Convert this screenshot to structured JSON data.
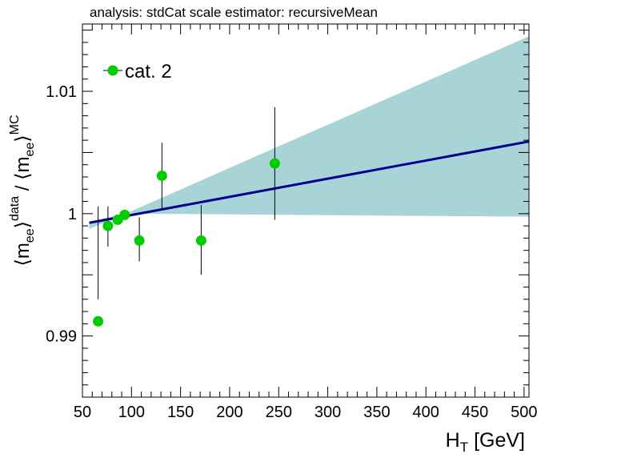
{
  "chart_data": {
    "type": "scatter",
    "title": "analysis: stdCat   scale estimator: recursiveMean",
    "xlabel": {
      "main": "H",
      "sub": "T",
      "tail": " [GeV]"
    },
    "ylabel": {
      "open1": "⟨m",
      "sub1": "ee",
      "close1": "⟩",
      "sup1": "data",
      "slash": " / ",
      "open2": "⟨m",
      "sub2": "ee",
      "close2": "⟩",
      "sup2": "MC"
    },
    "xlim": [
      50,
      505
    ],
    "ylim": [
      0.985,
      1.0155
    ],
    "x_ticks": [
      50,
      100,
      150,
      200,
      250,
      300,
      350,
      400,
      450,
      500
    ],
    "x_tick_labels": [
      "50",
      "100",
      "150",
      "200",
      "250",
      "300",
      "350",
      "400",
      "450",
      "500"
    ],
    "y_ticks": [
      0.99,
      1.0,
      1.01
    ],
    "y_tick_labels": [
      "0.99",
      "1",
      "1.01"
    ],
    "grid": false,
    "legend": {
      "position": "top-left",
      "entries": [
        "cat. 2"
      ]
    },
    "series": [
      {
        "name": "cat. 2",
        "color": "#00cc00",
        "points": [
          {
            "x": 66,
            "y": 0.9912,
            "yerr_low": 0.993,
            "yerr_high": 1.0006
          },
          {
            "x": 76,
            "y": 0.999,
            "yerr_low": 0.9973,
            "yerr_high": 1.0006
          },
          {
            "x": 86,
            "y": 0.9995,
            "yerr_low": 0.9995,
            "yerr_high": 0.9995
          },
          {
            "x": 93,
            "y": 0.9999,
            "yerr_low": 0.9999,
            "yerr_high": 0.9999
          },
          {
            "x": 108,
            "y": 0.9978,
            "yerr_low": 0.9961,
            "yerr_high": 0.9997
          },
          {
            "x": 131,
            "y": 1.0031,
            "yerr_low": 1.0004,
            "yerr_high": 1.0058
          },
          {
            "x": 171,
            "y": 0.9978,
            "yerr_low": 0.995,
            "yerr_high": 1.0007
          },
          {
            "x": 246,
            "y": 1.0041,
            "yerr_low": 0.9995,
            "yerr_high": 1.0087
          }
        ]
      }
    ],
    "fit": {
      "color": "#00008b",
      "x": [
        57,
        505
      ],
      "y": [
        0.99925,
        1.0059
      ]
    },
    "band": {
      "color": "#a8d4d8",
      "x": [
        57,
        94,
        505
      ],
      "upper": [
        0.99935,
        1.0,
        1.0145
      ],
      "lower": [
        0.99875,
        1.0,
        0.99975
      ]
    }
  }
}
